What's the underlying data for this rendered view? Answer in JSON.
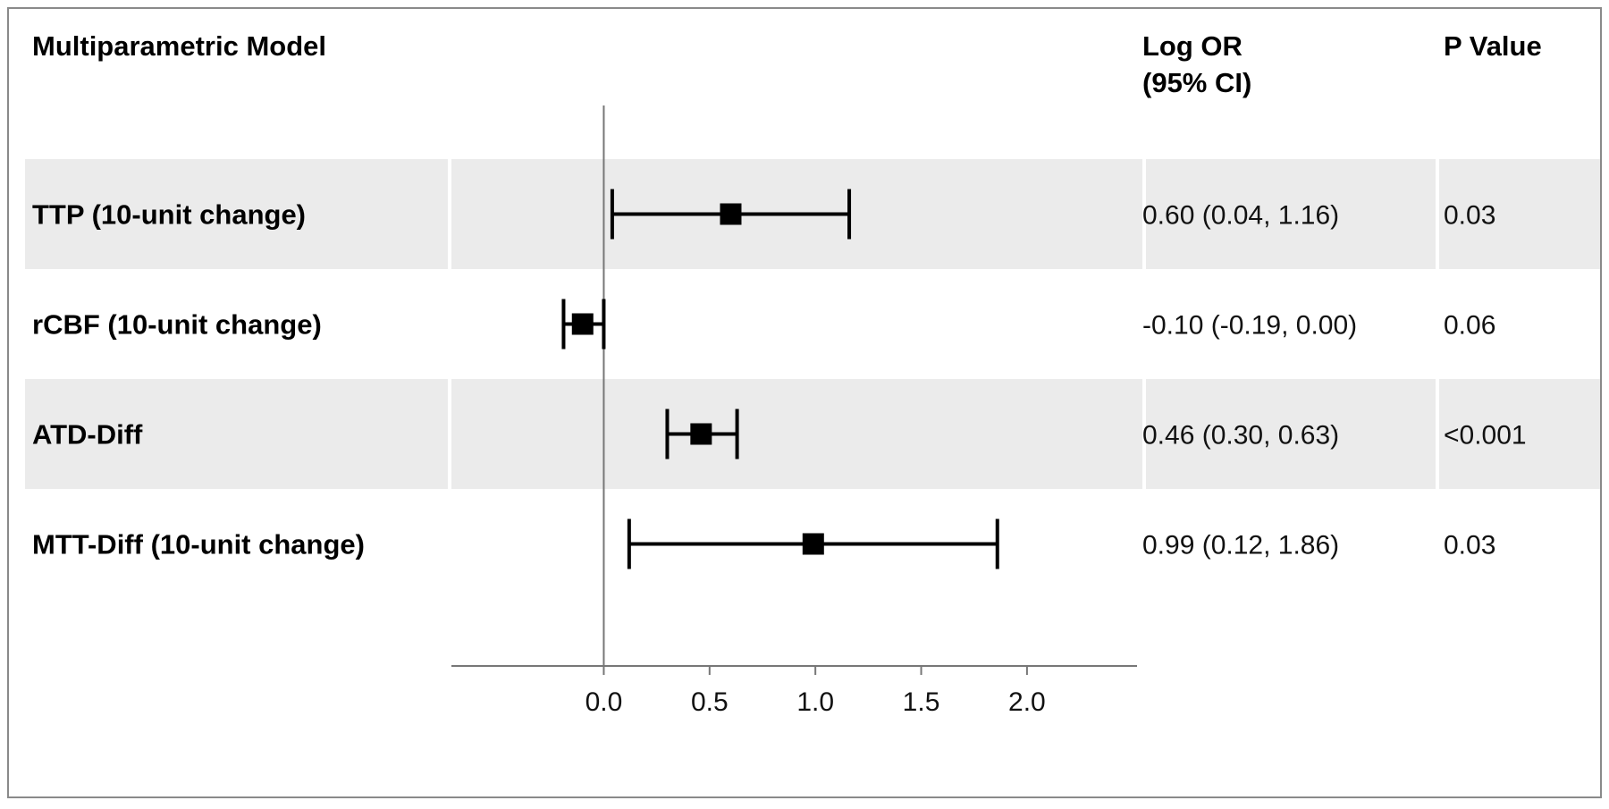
{
  "chart_data": {
    "type": "forest",
    "headers": {
      "model": "Multiparametric Model",
      "estimate_line1": "Log OR",
      "estimate_line2": "(95% CI)",
      "pvalue": "P Value"
    },
    "rows": [
      {
        "label": "TTP (10-unit change)",
        "estimate": 0.6,
        "ci_low": 0.04,
        "ci_high": 1.16,
        "estimate_text": "0.60 (0.04, 1.16)",
        "p_text": "0.03",
        "shaded": true
      },
      {
        "label": "rCBF (10-unit change)",
        "estimate": -0.1,
        "ci_low": -0.19,
        "ci_high": 0.0,
        "estimate_text": "-0.10 (-0.19, 0.00)",
        "p_text": "0.06",
        "shaded": false
      },
      {
        "label": "ATD-Diff",
        "estimate": 0.46,
        "ci_low": 0.3,
        "ci_high": 0.63,
        "estimate_text": "0.46 (0.30, 0.63)",
        "p_text": "<0.001",
        "shaded": true
      },
      {
        "label": "MTT-Diff (10-unit change)",
        "estimate": 0.99,
        "ci_low": 0.12,
        "ci_high": 1.86,
        "estimate_text": "0.99 (0.12, 1.86)",
        "p_text": "0.03",
        "shaded": false
      }
    ],
    "x_ticks": [
      0.0,
      0.5,
      1.0,
      1.5,
      2.0
    ],
    "x_tick_labels": [
      "0.0",
      "0.5",
      "1.0",
      "1.5",
      "2.0"
    ],
    "xlim": [
      -0.72,
      2.52
    ],
    "reference_line": 0,
    "colors": {
      "shade": "#ebebeb",
      "marker": "#000000",
      "axis": "#777777"
    }
  }
}
